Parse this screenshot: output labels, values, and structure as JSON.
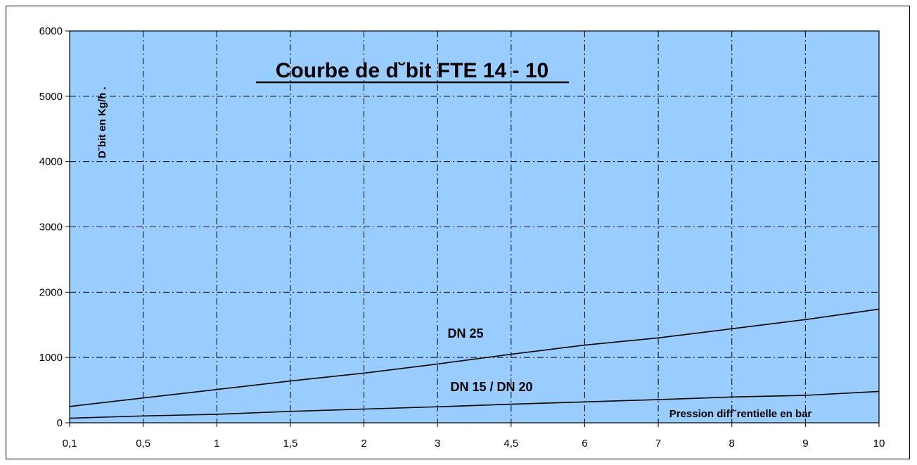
{
  "chart_data": {
    "type": "line",
    "title": "Courbe de d˘bit FTE 14 - 10",
    "xlabel": "Pression diff˘rentielle en bar",
    "ylabel": "D˘bit en Kg/h .",
    "categories": [
      "0,1",
      "0,5",
      "1",
      "1,5",
      "2",
      "3",
      "4,5",
      "6",
      "7",
      "8",
      "9",
      "10"
    ],
    "ylim": [
      0,
      6000
    ],
    "yticks": [
      "0",
      "1000",
      "2000",
      "3000",
      "4000",
      "5000",
      "6000"
    ],
    "grid": true,
    "series": [
      {
        "name": "DN 25",
        "color": "#000000",
        "values": [
          250,
          380,
          510,
          640,
          760,
          900,
          1050,
          1190,
          1300,
          1440,
          1580,
          1740
        ]
      },
      {
        "name": "DN 15 / DN 20",
        "color": "#000000",
        "values": [
          70,
          105,
          130,
          175,
          210,
          245,
          285,
          320,
          355,
          395,
          420,
          480
        ]
      }
    ],
    "annotations": [
      "DN 25",
      "DN 15 / DN 20"
    ],
    "plot_background": "#99ccff"
  }
}
